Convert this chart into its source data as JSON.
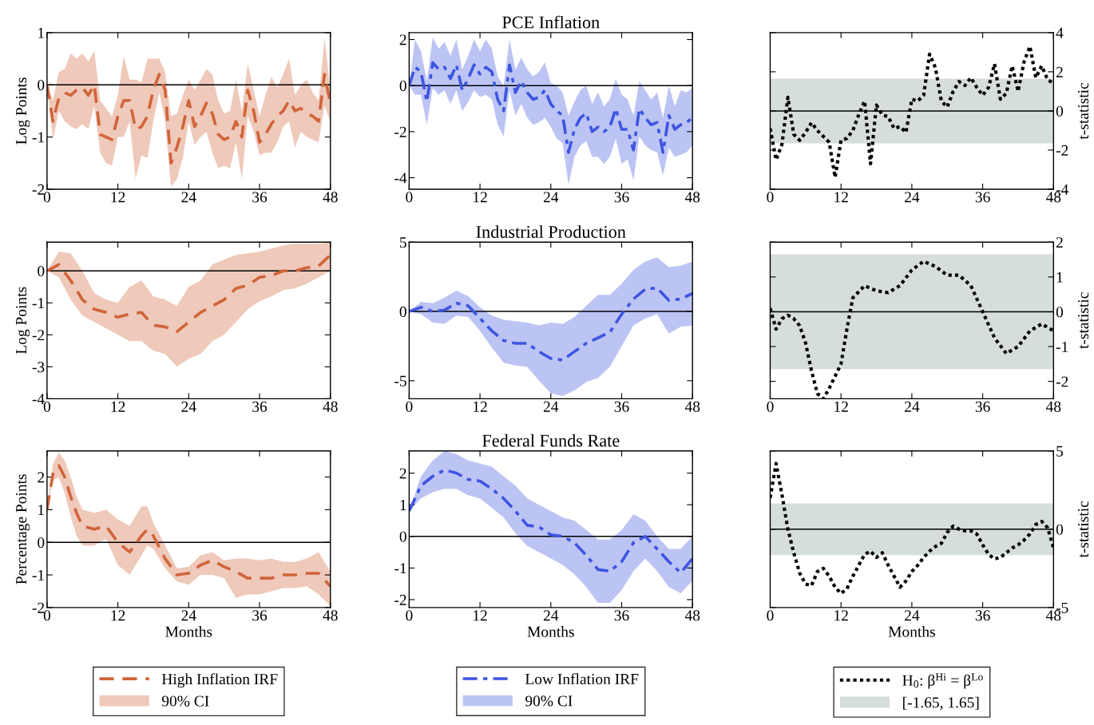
{
  "chart_data": [
    {
      "type": "line",
      "ylabel": "Log Points",
      "xlim": [
        0,
        48
      ],
      "xticks": [
        0,
        12,
        24,
        36,
        48
      ],
      "ylim": [
        -2,
        1
      ],
      "yticks": [
        -2,
        -1,
        0,
        1
      ],
      "x": [
        0,
        1,
        2,
        3,
        4,
        5,
        6,
        7,
        8,
        9,
        10,
        11,
        12,
        13,
        14,
        15,
        16,
        17,
        18,
        19,
        20,
        21,
        22,
        23,
        24,
        25,
        26,
        27,
        28,
        29,
        30,
        31,
        32,
        33,
        34,
        35,
        36,
        37,
        38,
        39,
        40,
        41,
        42,
        43,
        44,
        45,
        46,
        47,
        48
      ],
      "series": [
        {
          "color": "#d0643a",
          "line_style": "dashed",
          "values": [
            0,
            -0.7,
            -0.25,
            -0.15,
            -0.2,
            -0.1,
            -0.05,
            -0.2,
            0.0,
            -0.95,
            -1.0,
            -1.05,
            -0.6,
            -0.3,
            -0.3,
            -0.85,
            -0.8,
            -0.6,
            -0.1,
            0.2,
            -0.1,
            -1.5,
            -1.2,
            -0.8,
            -0.3,
            -0.8,
            -0.6,
            -0.35,
            -0.55,
            -0.95,
            -1.05,
            -1.0,
            -0.7,
            -1.0,
            -0.1,
            -0.5,
            -1.1,
            -0.95,
            -0.75,
            -0.6,
            -0.5,
            -0.3,
            -0.5,
            -0.45,
            -0.55,
            -0.6,
            -0.7,
            0.2,
            -0.35
          ],
          "lower": [
            0,
            -1.05,
            -0.5,
            -0.7,
            -0.8,
            -0.85,
            -0.75,
            -0.85,
            -0.4,
            -1.3,
            -1.5,
            -1.55,
            -1.0,
            -1.0,
            -0.7,
            -1.8,
            -1.35,
            -1.4,
            -0.7,
            -0.15,
            -0.7,
            -1.95,
            -1.8,
            -1.4,
            -0.7,
            -1.15,
            -1.0,
            -0.9,
            -1.3,
            -1.6,
            -1.55,
            -1.6,
            -1.1,
            -1.8,
            -0.6,
            -0.9,
            -1.35,
            -1.3,
            -1.3,
            -1.1,
            -0.8,
            -0.7,
            -1.2,
            -0.9,
            -1.0,
            -1.05,
            -1.1,
            -0.4,
            -0.7
          ],
          "upper": [
            0,
            -0.3,
            0.25,
            0.3,
            0.6,
            0.5,
            0.6,
            0.45,
            0.65,
            -0.3,
            -0.45,
            -0.6,
            -0.2,
            0.55,
            0.1,
            0.1,
            0.05,
            0.5,
            0.5,
            0.5,
            0.25,
            -0.6,
            -0.55,
            -0.2,
            0.1,
            -0.1,
            0.1,
            0.3,
            0.2,
            -0.3,
            -0.55,
            -0.5,
            0.1,
            -0.5,
            0.4,
            -0.1,
            -0.6,
            -0.2,
            0.15,
            -0.05,
            0.2,
            0.5,
            -0.2,
            0.0,
            0.1,
            -0.15,
            -0.3,
            0.9,
            -0.1
          ]
        }
      ],
      "ref_lines": [
        {
          "axis": "y",
          "value": 0,
          "color": "#000000"
        }
      ]
    },
    {
      "type": "line",
      "title": "PCE Inflation",
      "xlim": [
        0,
        48
      ],
      "xticks": [
        0,
        12,
        24,
        36,
        48
      ],
      "ylim": [
        -4.5,
        2.3
      ],
      "yticks": [
        -4,
        -2,
        0,
        2
      ],
      "x": [
        0,
        1,
        2,
        3,
        4,
        5,
        6,
        7,
        8,
        9,
        10,
        11,
        12,
        13,
        14,
        15,
        16,
        17,
        18,
        19,
        20,
        21,
        22,
        23,
        24,
        25,
        26,
        27,
        28,
        29,
        30,
        31,
        32,
        33,
        34,
        35,
        36,
        37,
        38,
        39,
        40,
        41,
        42,
        43,
        44,
        45,
        46,
        47,
        48
      ],
      "series": [
        {
          "color": "#3e55e0",
          "line_style": "dashdot",
          "values": [
            0,
            0.8,
            0.6,
            -0.7,
            1.0,
            0.7,
            0.8,
            0.3,
            0.9,
            -0.2,
            0.3,
            0.9,
            0.5,
            0.8,
            0.6,
            -0.6,
            -1.1,
            0.9,
            -0.3,
            0.2,
            -0.3,
            -0.6,
            -0.5,
            -0.2,
            -0.8,
            -1.1,
            -1.3,
            -2.9,
            -1.9,
            -1.4,
            -1.2,
            -2.0,
            -1.8,
            -2.0,
            -1.8,
            -1.0,
            -1.9,
            -1.9,
            -2.8,
            -1.0,
            -1.4,
            -1.7,
            -1.6,
            -2.9,
            -1.3,
            -1.9,
            -1.7,
            -1.6,
            -1.4
          ],
          "lower": [
            0,
            -0.4,
            -0.4,
            -1.7,
            -0.1,
            -0.4,
            -0.2,
            -0.8,
            -0.2,
            -1.1,
            -0.7,
            -0.2,
            -0.5,
            -0.4,
            -0.6,
            -1.7,
            -2.2,
            -0.2,
            -1.3,
            -0.8,
            -1.4,
            -1.7,
            -1.6,
            -1.4,
            -1.8,
            -2.3,
            -2.5,
            -4.3,
            -3.1,
            -2.6,
            -2.4,
            -3.1,
            -3.1,
            -3.4,
            -3.1,
            -2.3,
            -3.4,
            -3.2,
            -4.1,
            -2.2,
            -2.6,
            -2.8,
            -2.9,
            -3.9,
            -2.7,
            -3.1,
            -3.0,
            -2.9,
            -2.6
          ],
          "upper": [
            0,
            2.0,
            1.5,
            0.2,
            2.1,
            1.6,
            1.9,
            1.3,
            2.0,
            0.7,
            1.3,
            2.0,
            1.5,
            2.0,
            1.6,
            0.4,
            0.0,
            2.0,
            0.7,
            1.2,
            0.7,
            0.4,
            0.6,
            1.0,
            0.1,
            0.0,
            -0.3,
            -1.3,
            -0.7,
            -0.2,
            0.0,
            -0.8,
            -0.3,
            -0.9,
            -0.6,
            0.3,
            -0.4,
            -0.6,
            -1.3,
            0.2,
            -0.2,
            -0.6,
            -0.3,
            -1.4,
            0.0,
            -0.9,
            -0.2,
            -0.3,
            -0.1
          ]
        }
      ],
      "ref_lines": [
        {
          "axis": "y",
          "value": 0,
          "color": "#000000"
        }
      ]
    },
    {
      "type": "line",
      "y2label": "t-statistic",
      "xlim": [
        0,
        48
      ],
      "xticks": [
        0,
        12,
        24,
        36,
        48
      ],
      "y2lim": [
        -4,
        4
      ],
      "y2ticks": [
        -4,
        -2,
        0,
        2,
        4
      ],
      "x": [
        0,
        1,
        2,
        3,
        4,
        5,
        6,
        7,
        8,
        9,
        10,
        11,
        12,
        13,
        14,
        15,
        16,
        17,
        18,
        19,
        20,
        21,
        22,
        23,
        24,
        25,
        26,
        27,
        28,
        29,
        30,
        31,
        32,
        33,
        34,
        35,
        36,
        37,
        38,
        39,
        40,
        41,
        42,
        43,
        44,
        45,
        46,
        47,
        48
      ],
      "series": [
        {
          "color": "#000000",
          "axis": "y2",
          "line_style": "dotted",
          "values": [
            -0.9,
            -2.5,
            -1.7,
            0.7,
            -1.2,
            -1.5,
            -1.1,
            -0.6,
            -1.0,
            -1.3,
            -1.6,
            -3.4,
            -1.5,
            -1.4,
            -1.0,
            -0.2,
            0.5,
            -2.7,
            0.3,
            -0.2,
            -0.3,
            -0.9,
            -0.8,
            -1.1,
            0.6,
            0.5,
            0.8,
            2.9,
            2.2,
            0.5,
            0.2,
            1.0,
            1.5,
            1.3,
            1.7,
            1.2,
            0.8,
            1.2,
            2.4,
            0.6,
            0.9,
            2.3,
            1.0,
            2.5,
            3.3,
            1.7,
            2.3,
            1.6,
            1.4
          ]
        }
      ],
      "bands": [
        {
          "axis": "y2",
          "from": -1.65,
          "to": 1.65,
          "color": "#d5dedb"
        }
      ],
      "ref_lines": [
        {
          "axis": "y2",
          "value": 0,
          "color": "#000000"
        }
      ]
    },
    {
      "type": "line",
      "ylabel": "Log Points",
      "xlim": [
        0,
        48
      ],
      "xticks": [
        0,
        12,
        24,
        36,
        48
      ],
      "ylim": [
        -4,
        0.9
      ],
      "yticks": [
        -4,
        -3,
        -2,
        -1,
        0
      ],
      "x": [
        0,
        2,
        4,
        6,
        8,
        10,
        12,
        14,
        16,
        18,
        20,
        22,
        24,
        26,
        28,
        30,
        32,
        34,
        36,
        38,
        40,
        42,
        44,
        46,
        48
      ],
      "series": [
        {
          "color": "#d0643a",
          "line_style": "dashed",
          "values": [
            0,
            0.2,
            -0.3,
            -0.9,
            -1.2,
            -1.3,
            -1.45,
            -1.35,
            -1.3,
            -1.7,
            -1.75,
            -1.9,
            -1.6,
            -1.3,
            -1.1,
            -0.9,
            -0.55,
            -0.45,
            -0.2,
            -0.15,
            0.0,
            0.0,
            0.1,
            0.15,
            0.5
          ],
          "lower": [
            0,
            -0.2,
            -0.9,
            -1.4,
            -1.6,
            -1.8,
            -2.0,
            -2.2,
            -2.2,
            -2.5,
            -2.6,
            -3.0,
            -2.75,
            -2.6,
            -2.2,
            -2.0,
            -1.6,
            -1.2,
            -0.95,
            -0.8,
            -0.6,
            -0.55,
            -0.4,
            -0.2,
            0.0
          ],
          "upper": [
            0,
            0.6,
            0.55,
            0.0,
            -0.7,
            -0.9,
            -1.0,
            -0.5,
            -0.3,
            -0.8,
            -0.9,
            -1.1,
            -0.5,
            -0.3,
            0.2,
            0.35,
            0.5,
            0.55,
            0.6,
            0.7,
            0.8,
            0.85,
            0.85,
            0.85,
            0.9
          ]
        }
      ],
      "ref_lines": [
        {
          "axis": "y",
          "value": 0,
          "color": "#000000"
        }
      ]
    },
    {
      "type": "line",
      "title": "Industrial Production",
      "xlim": [
        0,
        48
      ],
      "xticks": [
        0,
        12,
        24,
        36,
        48
      ],
      "ylim": [
        -6.3,
        5
      ],
      "yticks": [
        -5,
        0,
        5
      ],
      "x": [
        0,
        2,
        4,
        6,
        8,
        10,
        12,
        14,
        16,
        18,
        20,
        22,
        24,
        26,
        28,
        30,
        32,
        34,
        36,
        38,
        40,
        42,
        44,
        46,
        48
      ],
      "series": [
        {
          "color": "#3e55e0",
          "line_style": "dashdot",
          "values": [
            0,
            0.3,
            0.0,
            0.1,
            0.6,
            0.4,
            -0.5,
            -1.4,
            -2.1,
            -2.3,
            -2.3,
            -2.9,
            -3.4,
            -3.5,
            -2.9,
            -2.3,
            -1.9,
            -1.5,
            -0.2,
            0.9,
            1.6,
            1.7,
            0.8,
            0.9,
            1.3
          ],
          "lower": [
            0,
            -0.2,
            -0.8,
            -0.9,
            -0.3,
            -0.4,
            -1.4,
            -2.6,
            -3.7,
            -3.9,
            -4.0,
            -5.0,
            -5.9,
            -6.1,
            -5.7,
            -5.1,
            -4.8,
            -4.0,
            -2.5,
            -1.0,
            -0.5,
            -0.2,
            -1.6,
            -1.1,
            -1.0
          ],
          "upper": [
            0,
            0.7,
            0.6,
            1.0,
            1.5,
            1.1,
            0.3,
            -0.3,
            -0.6,
            -0.7,
            -0.8,
            -1.0,
            -0.8,
            -0.9,
            -0.4,
            0.4,
            1.2,
            1.2,
            2.0,
            3.0,
            3.6,
            3.9,
            3.2,
            3.3,
            3.6
          ]
        }
      ],
      "ref_lines": [
        {
          "axis": "y",
          "value": 0,
          "color": "#000000"
        }
      ]
    },
    {
      "type": "line",
      "y2label": "t-statistic",
      "xlim": [
        0,
        48
      ],
      "xticks": [
        0,
        12,
        24,
        36,
        48
      ],
      "y2lim": [
        -2.5,
        2
      ],
      "y2ticks": [
        -2,
        -1,
        0,
        1,
        2
      ],
      "x": [
        0,
        1,
        2,
        3,
        4,
        5,
        6,
        7,
        8,
        9,
        10,
        11,
        12,
        13,
        14,
        16,
        18,
        20,
        22,
        24,
        26,
        28,
        30,
        32,
        34,
        36,
        38,
        40,
        42,
        44,
        46,
        48
      ],
      "series": [
        {
          "color": "#000000",
          "axis": "y2",
          "line_style": "dotted",
          "values": [
            0.1,
            -0.5,
            -0.2,
            -0.1,
            -0.2,
            -0.4,
            -0.9,
            -1.7,
            -2.35,
            -2.5,
            -2.2,
            -1.85,
            -1.5,
            -0.5,
            0.4,
            0.75,
            0.6,
            0.55,
            0.75,
            1.2,
            1.45,
            1.3,
            1.05,
            1.05,
            0.75,
            0.0,
            -0.75,
            -1.2,
            -1.0,
            -0.55,
            -0.35,
            -0.55
          ]
        }
      ],
      "bands": [
        {
          "axis": "y2",
          "from": -1.65,
          "to": 1.65,
          "color": "#d5dedb"
        }
      ],
      "ref_lines": [
        {
          "axis": "y2",
          "value": 0,
          "color": "#000000"
        }
      ]
    },
    {
      "type": "line",
      "ylabel": "Percentage Points",
      "xlabel": "Months",
      "xlim": [
        0,
        48
      ],
      "xticks": [
        0,
        12,
        24,
        36,
        48
      ],
      "ylim": [
        -2,
        2.8
      ],
      "yticks": [
        -2,
        -1,
        0,
        1,
        2
      ],
      "legend": "bottom",
      "annotations": [
        "90% CI"
      ],
      "x": [
        0,
        1,
        2,
        3,
        4,
        5,
        6,
        8,
        10,
        12,
        14,
        16,
        17,
        18,
        20,
        22,
        24,
        26,
        28,
        30,
        32,
        34,
        36,
        38,
        40,
        42,
        44,
        46,
        48
      ],
      "series": [
        {
          "name": "High Inflation IRF",
          "color": "#d0643a",
          "line_style": "dashed",
          "values": [
            1.0,
            2.1,
            2.35,
            2.0,
            1.4,
            0.9,
            0.5,
            0.4,
            0.5,
            0.0,
            -0.3,
            0.2,
            0.4,
            0.2,
            -0.5,
            -1.0,
            -0.95,
            -0.7,
            -0.55,
            -0.75,
            -0.9,
            -1.1,
            -1.1,
            -1.1,
            -1.0,
            -1.0,
            -0.95,
            -0.95,
            -1.35
          ],
          "lower": [
            1.0,
            1.9,
            2.0,
            1.5,
            0.8,
            0.2,
            -0.1,
            -0.1,
            0.1,
            -0.7,
            -1.0,
            -0.4,
            -0.1,
            -0.2,
            -0.8,
            -1.2,
            -1.3,
            -1.0,
            -1.0,
            -1.1,
            -1.7,
            -1.6,
            -1.6,
            -1.5,
            -1.4,
            -1.4,
            -1.35,
            -1.6,
            -1.95
          ],
          "upper": [
            1.0,
            2.4,
            2.75,
            2.5,
            2.0,
            1.4,
            1.0,
            0.9,
            1.0,
            0.7,
            0.5,
            1.1,
            1.1,
            0.6,
            -0.1,
            -0.8,
            -0.75,
            -0.4,
            -0.3,
            -0.55,
            -0.5,
            -0.5,
            -0.55,
            -0.5,
            -0.6,
            -0.6,
            -0.5,
            -0.3,
            -0.9
          ]
        }
      ],
      "ref_lines": [
        {
          "axis": "y",
          "value": 0,
          "color": "#000000"
        }
      ]
    },
    {
      "type": "line",
      "title": "Federal Funds Rate",
      "xlabel": "Months",
      "xlim": [
        0,
        48
      ],
      "xticks": [
        0,
        12,
        24,
        36,
        48
      ],
      "ylim": [
        -2.25,
        2.7
      ],
      "yticks": [
        -2,
        -1,
        0,
        1,
        2
      ],
      "legend": "bottom",
      "annotations": [
        "90% CI"
      ],
      "x": [
        0,
        2,
        4,
        6,
        8,
        10,
        12,
        14,
        16,
        18,
        20,
        22,
        24,
        26,
        28,
        30,
        32,
        34,
        36,
        38,
        40,
        42,
        44,
        46,
        48
      ],
      "series": [
        {
          "name": "Low Inflation IRF",
          "color": "#3e55e0",
          "line_style": "dashdot",
          "values": [
            0.8,
            1.6,
            1.9,
            2.1,
            2.0,
            1.8,
            1.75,
            1.5,
            1.2,
            0.8,
            0.35,
            0.3,
            0.05,
            0.0,
            -0.2,
            -0.6,
            -1.05,
            -1.1,
            -0.8,
            -0.2,
            0.0,
            -0.4,
            -0.8,
            -1.15,
            -0.7
          ],
          "lower": [
            0.8,
            1.2,
            1.4,
            1.5,
            1.5,
            1.3,
            1.2,
            0.9,
            0.6,
            0.1,
            -0.3,
            -0.5,
            -0.7,
            -0.9,
            -1.2,
            -1.6,
            -2.1,
            -2.1,
            -1.7,
            -1.1,
            -0.7,
            -1.1,
            -1.6,
            -1.8,
            -1.4
          ],
          "upper": [
            0.8,
            1.9,
            2.4,
            2.7,
            2.6,
            2.4,
            2.3,
            2.2,
            1.9,
            1.6,
            1.2,
            1.0,
            0.8,
            0.6,
            0.5,
            0.2,
            -0.1,
            -0.1,
            0.2,
            0.7,
            0.5,
            0.0,
            -0.4,
            -0.4,
            0.0
          ]
        }
      ],
      "ref_lines": [
        {
          "axis": "y",
          "value": 0,
          "color": "#000000"
        }
      ]
    },
    {
      "type": "line",
      "xlabel": "Months",
      "y2label": "t-statistic",
      "xlim": [
        0,
        48
      ],
      "xticks": [
        0,
        12,
        24,
        36,
        48
      ],
      "y2lim": [
        -5,
        5
      ],
      "y2ticks": [
        -5,
        0,
        5
      ],
      "legend": "bottom",
      "x": [
        0,
        1,
        2,
        3,
        4,
        5,
        6,
        7,
        8,
        9,
        10,
        11,
        12,
        13,
        14,
        15,
        16,
        17,
        18,
        19,
        20,
        21,
        22,
        23,
        24,
        25,
        26,
        27,
        28,
        29,
        30,
        31,
        32,
        33,
        34,
        35,
        36,
        37,
        38,
        39,
        40,
        41,
        42,
        43,
        44,
        45,
        46,
        47,
        48
      ],
      "series": [
        {
          "name": "H$_{0}$: β$^{Hi}$ = β$^{Lo}$",
          "color": "#000000",
          "axis": "y2",
          "line_style": "dotted",
          "values": [
            2.0,
            4.2,
            2.2,
            0.0,
            -1.5,
            -2.8,
            -3.5,
            -3.6,
            -2.7,
            -2.5,
            -3.0,
            -3.7,
            -4.1,
            -3.8,
            -3.0,
            -2.3,
            -1.6,
            -1.4,
            -1.8,
            -1.5,
            -2.3,
            -3.0,
            -3.7,
            -3.3,
            -2.7,
            -2.3,
            -1.8,
            -1.4,
            -1.1,
            -0.9,
            -0.2,
            0.2,
            0.0,
            -0.1,
            -0.1,
            -0.3,
            -1.0,
            -1.6,
            -1.9,
            -1.8,
            -1.5,
            -1.2,
            -1.0,
            -0.7,
            -0.3,
            0.3,
            0.5,
            0.1,
            -1.2
          ]
        }
      ],
      "bands": [
        {
          "axis": "y2",
          "from": -1.65,
          "to": 1.65,
          "color": "#d5dedb",
          "label": "[-1.65, 1.65]"
        }
      ],
      "ref_lines": [
        {
          "axis": "y2",
          "value": 0,
          "color": "#000000"
        }
      ]
    }
  ]
}
